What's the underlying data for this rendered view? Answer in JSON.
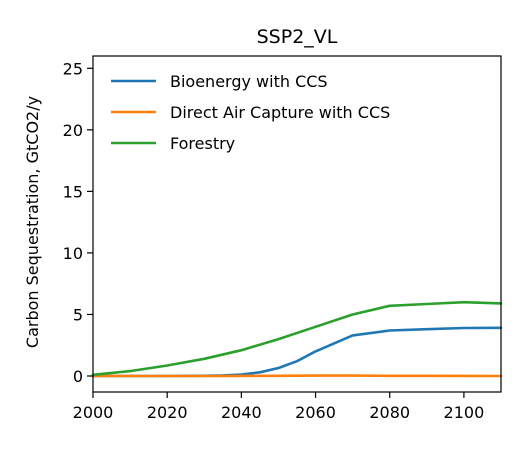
{
  "chart_data": {
    "type": "line",
    "title": "SSP2_VL",
    "xlabel": "",
    "ylabel": "Carbon Sequestration, GtCO2/y",
    "xlim": [
      2000,
      2110
    ],
    "ylim": [
      -1.3,
      26.0
    ],
    "xticks": [
      2000,
      2020,
      2040,
      2060,
      2080,
      2100
    ],
    "yticks": [
      0,
      5,
      10,
      15,
      20,
      25
    ],
    "grid": false,
    "legend_position": "top-left",
    "series": [
      {
        "name": "Bioenergy with CCS",
        "color": "#1f77b4",
        "x": [
          2000,
          2010,
          2020,
          2030,
          2035,
          2040,
          2045,
          2050,
          2055,
          2060,
          2070,
          2080,
          2090,
          2100,
          2110
        ],
        "y": [
          0.0,
          0.0,
          0.0,
          0.02,
          0.05,
          0.12,
          0.3,
          0.65,
          1.2,
          2.0,
          3.3,
          3.7,
          3.8,
          3.9,
          3.92
        ]
      },
      {
        "name": "Direct Air Capture with CCS",
        "color": "#ff7f0e",
        "x": [
          2000,
          2010,
          2020,
          2030,
          2040,
          2050,
          2060,
          2070,
          2080,
          2090,
          2100,
          2110
        ],
        "y": [
          0.0,
          0.0,
          0.0,
          0.0,
          0.01,
          0.02,
          0.03,
          0.03,
          0.02,
          0.02,
          0.01,
          0.0
        ]
      },
      {
        "name": "Forestry",
        "color": "#2ca02c",
        "x": [
          2000,
          2010,
          2020,
          2030,
          2040,
          2050,
          2060,
          2070,
          2080,
          2090,
          2100,
          2110
        ],
        "y": [
          0.1,
          0.4,
          0.85,
          1.4,
          2.1,
          3.0,
          4.0,
          5.0,
          5.7,
          5.85,
          6.0,
          5.9
        ]
      }
    ]
  }
}
